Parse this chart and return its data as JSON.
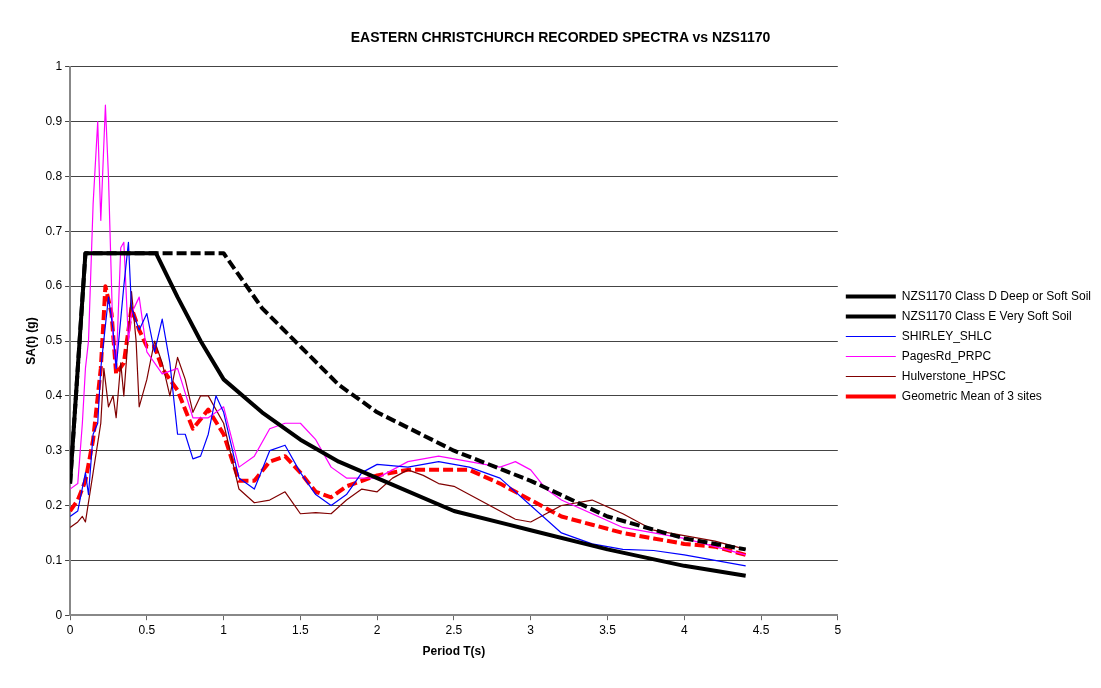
{
  "chart_data": {
    "type": "line",
    "title": "EASTERN CHRISTCHURCH RECORDED SPECTRA vs NZS1170",
    "xlabel": "Period T(s)",
    "ylabel": "SA(t) (g)",
    "xlim": [
      0,
      5
    ],
    "xticks": [
      0,
      0.5,
      1,
      1.5,
      2,
      2.5,
      3,
      3.5,
      4,
      4.5,
      5
    ],
    "ylim": [
      0,
      1
    ],
    "yticks": [
      0,
      0.1,
      0.2,
      0.3,
      0.4,
      0.5,
      0.6,
      0.7,
      0.8,
      0.9,
      1
    ],
    "grid": "y",
    "legend": "right",
    "marker": "none",
    "series": [
      {
        "name": "NZS1170 Class D Deep or Soft Soil",
        "color": "#000000",
        "line_style": "solid",
        "x": [
          0,
          0.1,
          0.56,
          0.7,
          0.85,
          1,
          1.25,
          1.5,
          1.75,
          2,
          2.5,
          3,
          3.5,
          4,
          4.4
        ],
        "values": [
          0.24,
          0.66,
          0.66,
          0.58,
          0.5,
          0.43,
          0.37,
          0.32,
          0.28,
          0.25,
          0.19,
          0.155,
          0.12,
          0.09,
          0.072
        ]
      },
      {
        "name": "NZS1170 Class E Very Soft Soil",
        "color": "#000000",
        "line_style": "dashed",
        "x": [
          0,
          0.1,
          1,
          1.25,
          1.5,
          1.75,
          2,
          2.5,
          3,
          3.5,
          4,
          4.4
        ],
        "values": [
          0.24,
          0.66,
          0.66,
          0.56,
          0.49,
          0.42,
          0.37,
          0.3,
          0.245,
          0.18,
          0.14,
          0.12
        ]
      },
      {
        "name": "SHIRLEY_SHLC",
        "color": "#0000ff",
        "x": [
          0,
          0.05,
          0.1,
          0.12,
          0.15,
          0.18,
          0.2,
          0.25,
          0.28,
          0.3,
          0.35,
          0.38,
          0.4,
          0.45,
          0.5,
          0.55,
          0.6,
          0.65,
          0.7,
          0.75,
          0.8,
          0.85,
          0.9,
          0.95,
          1,
          1.1,
          1.2,
          1.3,
          1.4,
          1.5,
          1.6,
          1.7,
          1.8,
          1.9,
          2,
          2.2,
          2.4,
          2.6,
          2.8,
          3,
          3.2,
          3.4,
          3.6,
          3.8,
          4,
          4.2,
          4.4
        ],
        "values": [
          0.18,
          0.19,
          0.26,
          0.22,
          0.33,
          0.35,
          0.45,
          0.58,
          0.52,
          0.45,
          0.6,
          0.68,
          0.56,
          0.52,
          0.55,
          0.48,
          0.54,
          0.46,
          0.33,
          0.33,
          0.285,
          0.29,
          0.33,
          0.4,
          0.37,
          0.25,
          0.23,
          0.3,
          0.31,
          0.26,
          0.22,
          0.2,
          0.22,
          0.26,
          0.275,
          0.27,
          0.28,
          0.27,
          0.25,
          0.2,
          0.15,
          0.13,
          0.12,
          0.118,
          0.11,
          0.1,
          0.09
        ]
      },
      {
        "name": "PagesRd_PRPC",
        "color": "#ff00ff",
        "x": [
          0,
          0.05,
          0.08,
          0.1,
          0.12,
          0.15,
          0.18,
          0.2,
          0.23,
          0.25,
          0.28,
          0.3,
          0.33,
          0.35,
          0.38,
          0.4,
          0.45,
          0.5,
          0.55,
          0.6,
          0.7,
          0.8,
          0.9,
          1,
          1.1,
          1.2,
          1.3,
          1.4,
          1.5,
          1.6,
          1.7,
          1.8,
          2,
          2.2,
          2.4,
          2.6,
          2.8,
          2.9,
          3,
          3.1,
          3.2,
          3.6,
          4,
          4.4
        ],
        "values": [
          0.23,
          0.24,
          0.35,
          0.45,
          0.5,
          0.75,
          0.9,
          0.72,
          0.93,
          0.8,
          0.5,
          0.45,
          0.67,
          0.68,
          0.5,
          0.55,
          0.58,
          0.48,
          0.46,
          0.44,
          0.45,
          0.36,
          0.36,
          0.38,
          0.27,
          0.29,
          0.34,
          0.35,
          0.35,
          0.32,
          0.27,
          0.25,
          0.25,
          0.28,
          0.29,
          0.28,
          0.27,
          0.28,
          0.265,
          0.23,
          0.21,
          0.16,
          0.14,
          0.11
        ]
      },
      {
        "name": "Hulverstone_HPSC",
        "color": "#800000",
        "x": [
          0,
          0.05,
          0.08,
          0.1,
          0.15,
          0.2,
          0.22,
          0.25,
          0.28,
          0.3,
          0.33,
          0.35,
          0.4,
          0.43,
          0.45,
          0.5,
          0.55,
          0.6,
          0.65,
          0.7,
          0.75,
          0.8,
          0.85,
          0.9,
          1,
          1.1,
          1.2,
          1.3,
          1.4,
          1.5,
          1.6,
          1.7,
          1.8,
          1.9,
          2,
          2.1,
          2.2,
          2.3,
          2.4,
          2.5,
          2.6,
          2.8,
          2.9,
          3,
          3.2,
          3.4,
          3.6,
          3.8,
          4,
          4.2,
          4.4
        ],
        "values": [
          0.16,
          0.17,
          0.18,
          0.17,
          0.26,
          0.35,
          0.45,
          0.38,
          0.4,
          0.36,
          0.46,
          0.4,
          0.59,
          0.5,
          0.38,
          0.43,
          0.5,
          0.46,
          0.4,
          0.47,
          0.43,
          0.37,
          0.4,
          0.4,
          0.35,
          0.23,
          0.205,
          0.21,
          0.225,
          0.185,
          0.187,
          0.185,
          0.21,
          0.23,
          0.225,
          0.25,
          0.265,
          0.255,
          0.24,
          0.235,
          0.22,
          0.19,
          0.175,
          0.17,
          0.2,
          0.21,
          0.185,
          0.155,
          0.145,
          0.135,
          0.12
        ]
      },
      {
        "name": "Geometric Mean of 3 sites",
        "color": "#ff0000",
        "line_style": "dashed",
        "x": [
          0,
          0.05,
          0.1,
          0.15,
          0.2,
          0.23,
          0.27,
          0.3,
          0.35,
          0.4,
          0.45,
          0.5,
          0.55,
          0.6,
          0.7,
          0.8,
          0.9,
          1,
          1.1,
          1.2,
          1.3,
          1.4,
          1.5,
          1.6,
          1.7,
          1.8,
          2,
          2.2,
          2.4,
          2.6,
          2.8,
          3,
          3.2,
          3.4,
          3.6,
          3.8,
          4,
          4.2,
          4.4
        ],
        "values": [
          0.19,
          0.21,
          0.245,
          0.32,
          0.45,
          0.6,
          0.55,
          0.44,
          0.46,
          0.56,
          0.52,
          0.49,
          0.49,
          0.45,
          0.41,
          0.34,
          0.375,
          0.33,
          0.245,
          0.245,
          0.28,
          0.29,
          0.26,
          0.225,
          0.215,
          0.235,
          0.255,
          0.265,
          0.265,
          0.265,
          0.24,
          0.21,
          0.18,
          0.165,
          0.15,
          0.14,
          0.13,
          0.125,
          0.11
        ]
      }
    ]
  }
}
